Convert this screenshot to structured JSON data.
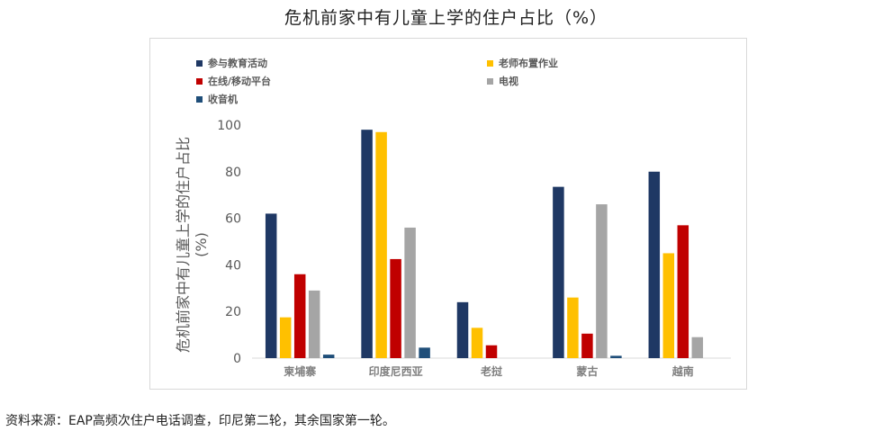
{
  "chart_data": {
    "type": "bar",
    "title": "危机前家中有儿童上学的住户占比（%）",
    "ylabel": "危机前家中有儿童上学的住户占比",
    "ylabel_unit": "(%)",
    "ylim": [
      0,
      100
    ],
    "yticks": [
      "0",
      "20",
      "40",
      "60",
      "80",
      "100"
    ],
    "categories": [
      "柬埔寨",
      "印度尼西亚",
      "老挝",
      "蒙古",
      "越南"
    ],
    "series": [
      {
        "name": "参与教育活动",
        "color": "#1f3864",
        "values": [
          62,
          98,
          24,
          73.5,
          80
        ]
      },
      {
        "name": "老师布置作业",
        "color": "#ffc000",
        "values": [
          17.5,
          97,
          13,
          26,
          45
        ]
      },
      {
        "name": "在线/移动平台",
        "color": "#c00000",
        "values": [
          36,
          42.5,
          5.5,
          10.5,
          57
        ]
      },
      {
        "name": "电视",
        "color": "#a5a5a5",
        "values": [
          29,
          56,
          null,
          66,
          9
        ]
      },
      {
        "name": "收音机",
        "color": "#1f4e79",
        "values": [
          1.5,
          4.5,
          null,
          1,
          null
        ]
      }
    ],
    "legend_position": "top",
    "grid": false
  },
  "source_note": "资料来源：EAP高频次住户电话调查，印尼第二轮，其余国家第一轮。"
}
